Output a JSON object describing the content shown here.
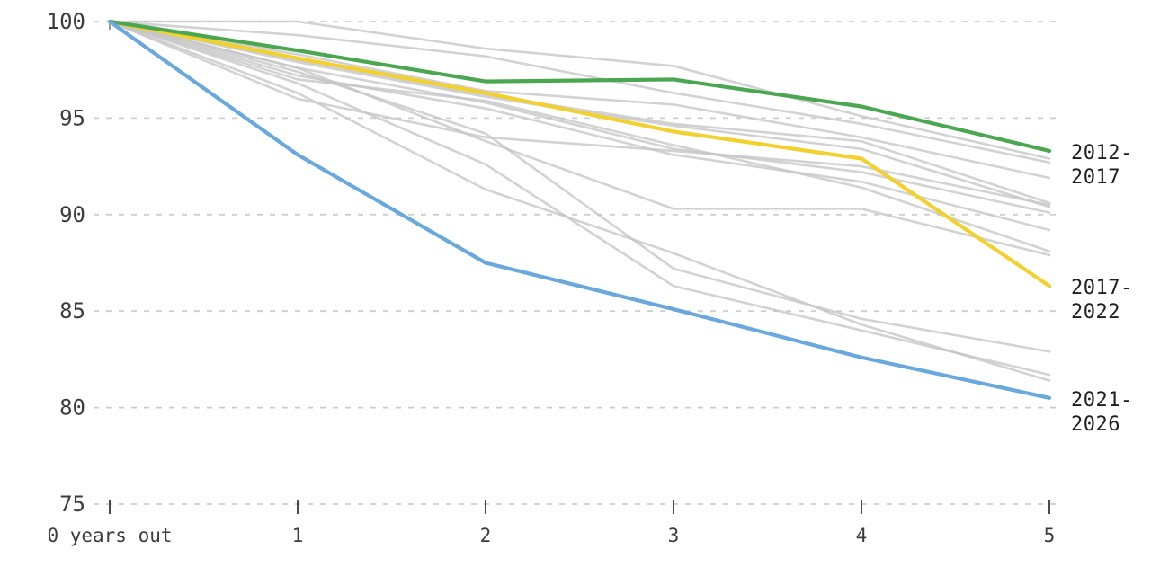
{
  "chart_data": {
    "type": "line",
    "x": [
      0,
      1,
      2,
      3,
      4,
      5
    ],
    "x_tick_labels": [
      "0 years out",
      "1",
      "2",
      "3",
      "4",
      "5"
    ],
    "y_ticks": [
      100,
      95,
      90,
      85,
      80,
      75
    ],
    "ylim": [
      75,
      100
    ],
    "xlim": [
      0,
      5
    ],
    "grid": "horizontal-dashed",
    "legend_position": "end-of-line-right-labels",
    "colors": {
      "background": "#ffffff",
      "gray_series": "#c5c5c5",
      "gridline": "#cdcdcd",
      "axis_text": "#3c3c3c",
      "end_label_text": "#1f1f1f",
      "green": "#4aa750",
      "yellow": "#f2d02e",
      "blue": "#68a8dc"
    },
    "background_series": [
      {
        "id": "background-1",
        "values": [
          100,
          100,
          98.6,
          97.7,
          95.1,
          92.9
        ]
      },
      {
        "id": "background-2",
        "values": [
          100,
          99.3,
          98.2,
          96.3,
          94.7,
          92.7
        ]
      },
      {
        "id": "background-3",
        "values": [
          100,
          98.3,
          96.4,
          95.7,
          94.0,
          91.9
        ]
      },
      {
        "id": "background-4",
        "values": [
          100,
          98.0,
          96.2,
          94.7,
          93.8,
          90.6
        ]
      },
      {
        "id": "background-5",
        "values": [
          100,
          97.9,
          96.1,
          94.6,
          93.4,
          90.4
        ]
      },
      {
        "id": "background-6",
        "values": [
          100,
          97.6,
          95.8,
          93.4,
          92.2,
          90.1
        ]
      },
      {
        "id": "background-7",
        "values": [
          100,
          97.2,
          95.5,
          93.1,
          91.7,
          89.2
        ]
      },
      {
        "id": "background-8",
        "values": [
          100,
          97.6,
          93.8,
          90.3,
          90.3,
          87.9
        ]
      },
      {
        "id": "background-9",
        "values": [
          100,
          96.0,
          94.0,
          93.3,
          92.5,
          90.5
        ]
      },
      {
        "id": "background-10",
        "values": [
          100,
          97.4,
          94.2,
          87.2,
          84.6,
          82.9
        ]
      },
      {
        "id": "background-11",
        "values": [
          100,
          96.8,
          92.6,
          86.3,
          84.0,
          81.7
        ]
      },
      {
        "id": "background-12",
        "values": [
          100,
          96.3,
          91.3,
          88.0,
          84.3,
          81.4
        ]
      },
      {
        "id": "background-13",
        "values": [
          100,
          97.0,
          95.9,
          93.6,
          91.4,
          88.1
        ]
      }
    ],
    "series": [
      {
        "name": "2012-2017",
        "color": "#4aa750",
        "values": [
          100,
          98.5,
          96.9,
          97.0,
          95.6,
          93.3
        ],
        "end_label": {
          "line1": "2012-",
          "line2": "2017"
        }
      },
      {
        "name": "2017-2022",
        "color": "#f2d02e",
        "values": [
          100,
          98.1,
          96.3,
          94.3,
          92.9,
          86.3
        ],
        "end_label": {
          "line1": "2017-",
          "line2": "2022"
        }
      },
      {
        "name": "2021-2026",
        "color": "#68a8dc",
        "values": [
          100,
          93.1,
          87.5,
          85.1,
          82.6,
          80.5
        ],
        "end_label": {
          "line1": "2021-",
          "line2": "2026"
        }
      }
    ]
  }
}
